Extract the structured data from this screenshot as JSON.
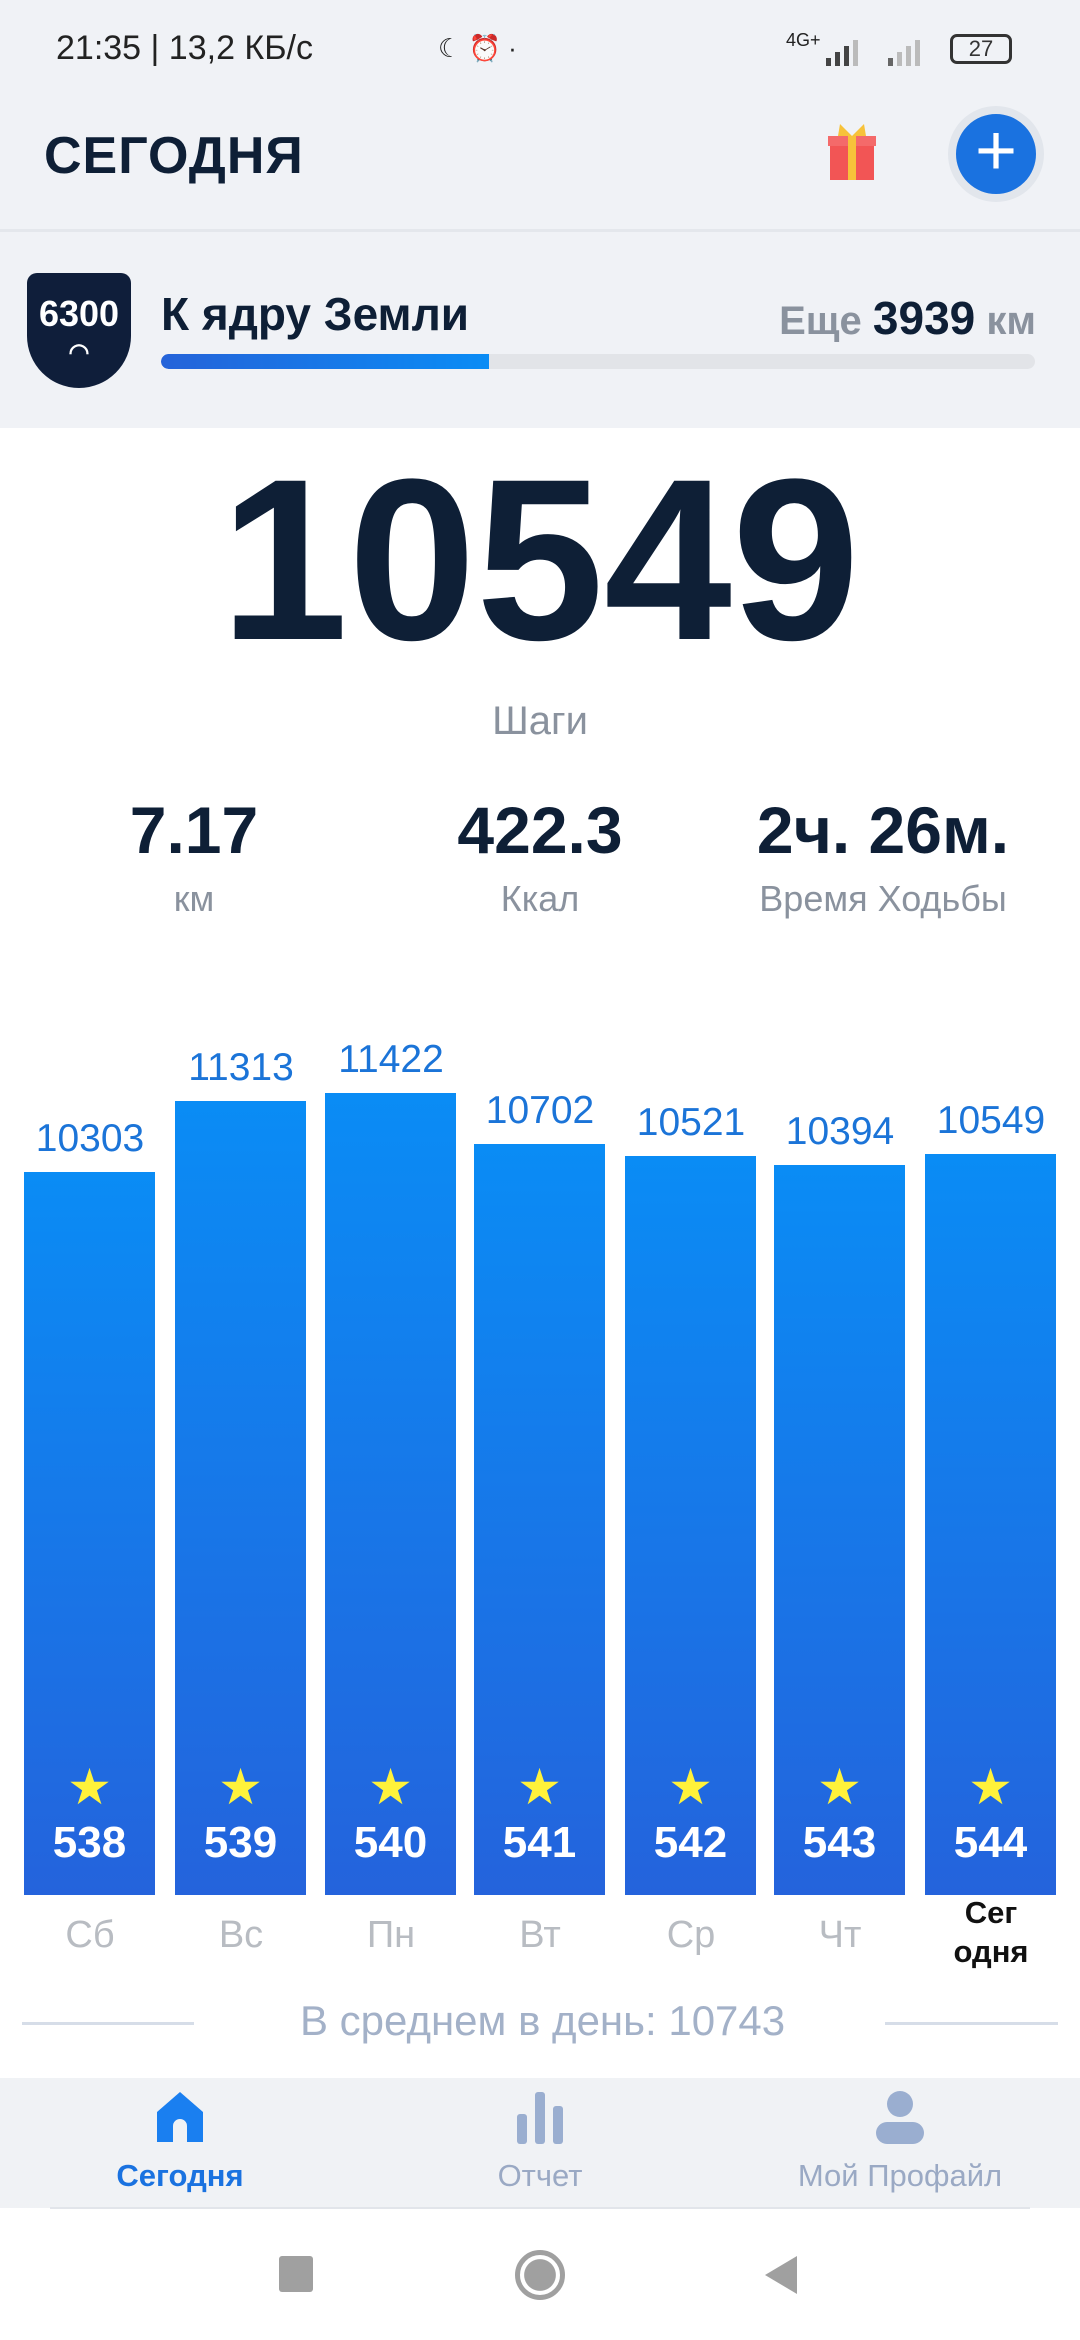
{
  "status_bar": {
    "time": "21:35 | 13,2 КБ/с",
    "network": "4G+",
    "battery": "27"
  },
  "header": {
    "title": "СЕГОДНЯ",
    "gift_icon": "gift-icon",
    "add_icon": "plus-icon"
  },
  "goal": {
    "badge": "6300",
    "title": "К ядру Земли",
    "remain_prefix": "Еще",
    "remain_value": "3939",
    "remain_unit": "км",
    "progress": 0.375
  },
  "today": {
    "steps": "10549",
    "steps_label": "Шаги"
  },
  "stats": [
    {
      "value": "7.17",
      "label": "км"
    },
    {
      "value": "422.3",
      "label": "Ккал"
    },
    {
      "value": "2ч. 26м.",
      "label": "Время Ходьбы"
    }
  ],
  "chart_data": {
    "type": "bar",
    "categories": [
      "Сб",
      "Вс",
      "Пн",
      "Вт",
      "Ср",
      "Чт",
      "Сег одня"
    ],
    "values": [
      10303,
      11313,
      11422,
      10702,
      10521,
      10394,
      10549
    ],
    "streak_numbers": [
      "538",
      "539",
      "540",
      "541",
      "542",
      "543",
      "544"
    ],
    "colors": {
      "bar_top": "#0a8cf5",
      "bar_bottom": "#2463dc",
      "value_label": "#1b74d8",
      "star": "#fff23a"
    }
  },
  "day_labels": [
    "Сб",
    "Вс",
    "Пн",
    "Вт",
    "Ср",
    "Чт"
  ],
  "today_label": [
    "Сег",
    "одня"
  ],
  "average": "В среднем в день: 10743",
  "nav": [
    {
      "label": "Сегодня",
      "icon": "home-icon"
    },
    {
      "label": "Отчет",
      "icon": "bar-chart-icon"
    },
    {
      "label": "Мой Профайл",
      "icon": "profile-icon"
    }
  ]
}
